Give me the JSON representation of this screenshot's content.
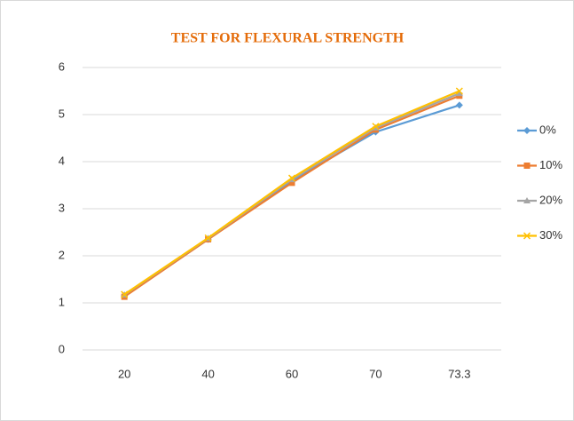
{
  "chart_data": {
    "type": "line",
    "title": "TEST FOR FLEXURAL STRENGTH",
    "categories": [
      "20",
      "40",
      "60",
      "70",
      "73.3"
    ],
    "series": [
      {
        "name": "0%",
        "color": "#5b9bd5",
        "marker": "diamond",
        "values": [
          1.15,
          2.35,
          3.6,
          4.63,
          5.2
        ]
      },
      {
        "name": "10%",
        "color": "#ed7d31",
        "marker": "square",
        "values": [
          1.13,
          2.35,
          3.55,
          4.68,
          5.4
        ]
      },
      {
        "name": "20%",
        "color": "#a5a5a5",
        "marker": "triangle",
        "values": [
          1.17,
          2.37,
          3.62,
          4.72,
          5.45
        ]
      },
      {
        "name": "30%",
        "color": "#ffc000",
        "marker": "x",
        "values": [
          1.18,
          2.38,
          3.65,
          4.75,
          5.5
        ]
      }
    ],
    "ylim": [
      0,
      6
    ],
    "yticks": [
      0,
      1,
      2,
      3,
      4,
      5,
      6
    ],
    "grid": true,
    "legend": "right"
  }
}
